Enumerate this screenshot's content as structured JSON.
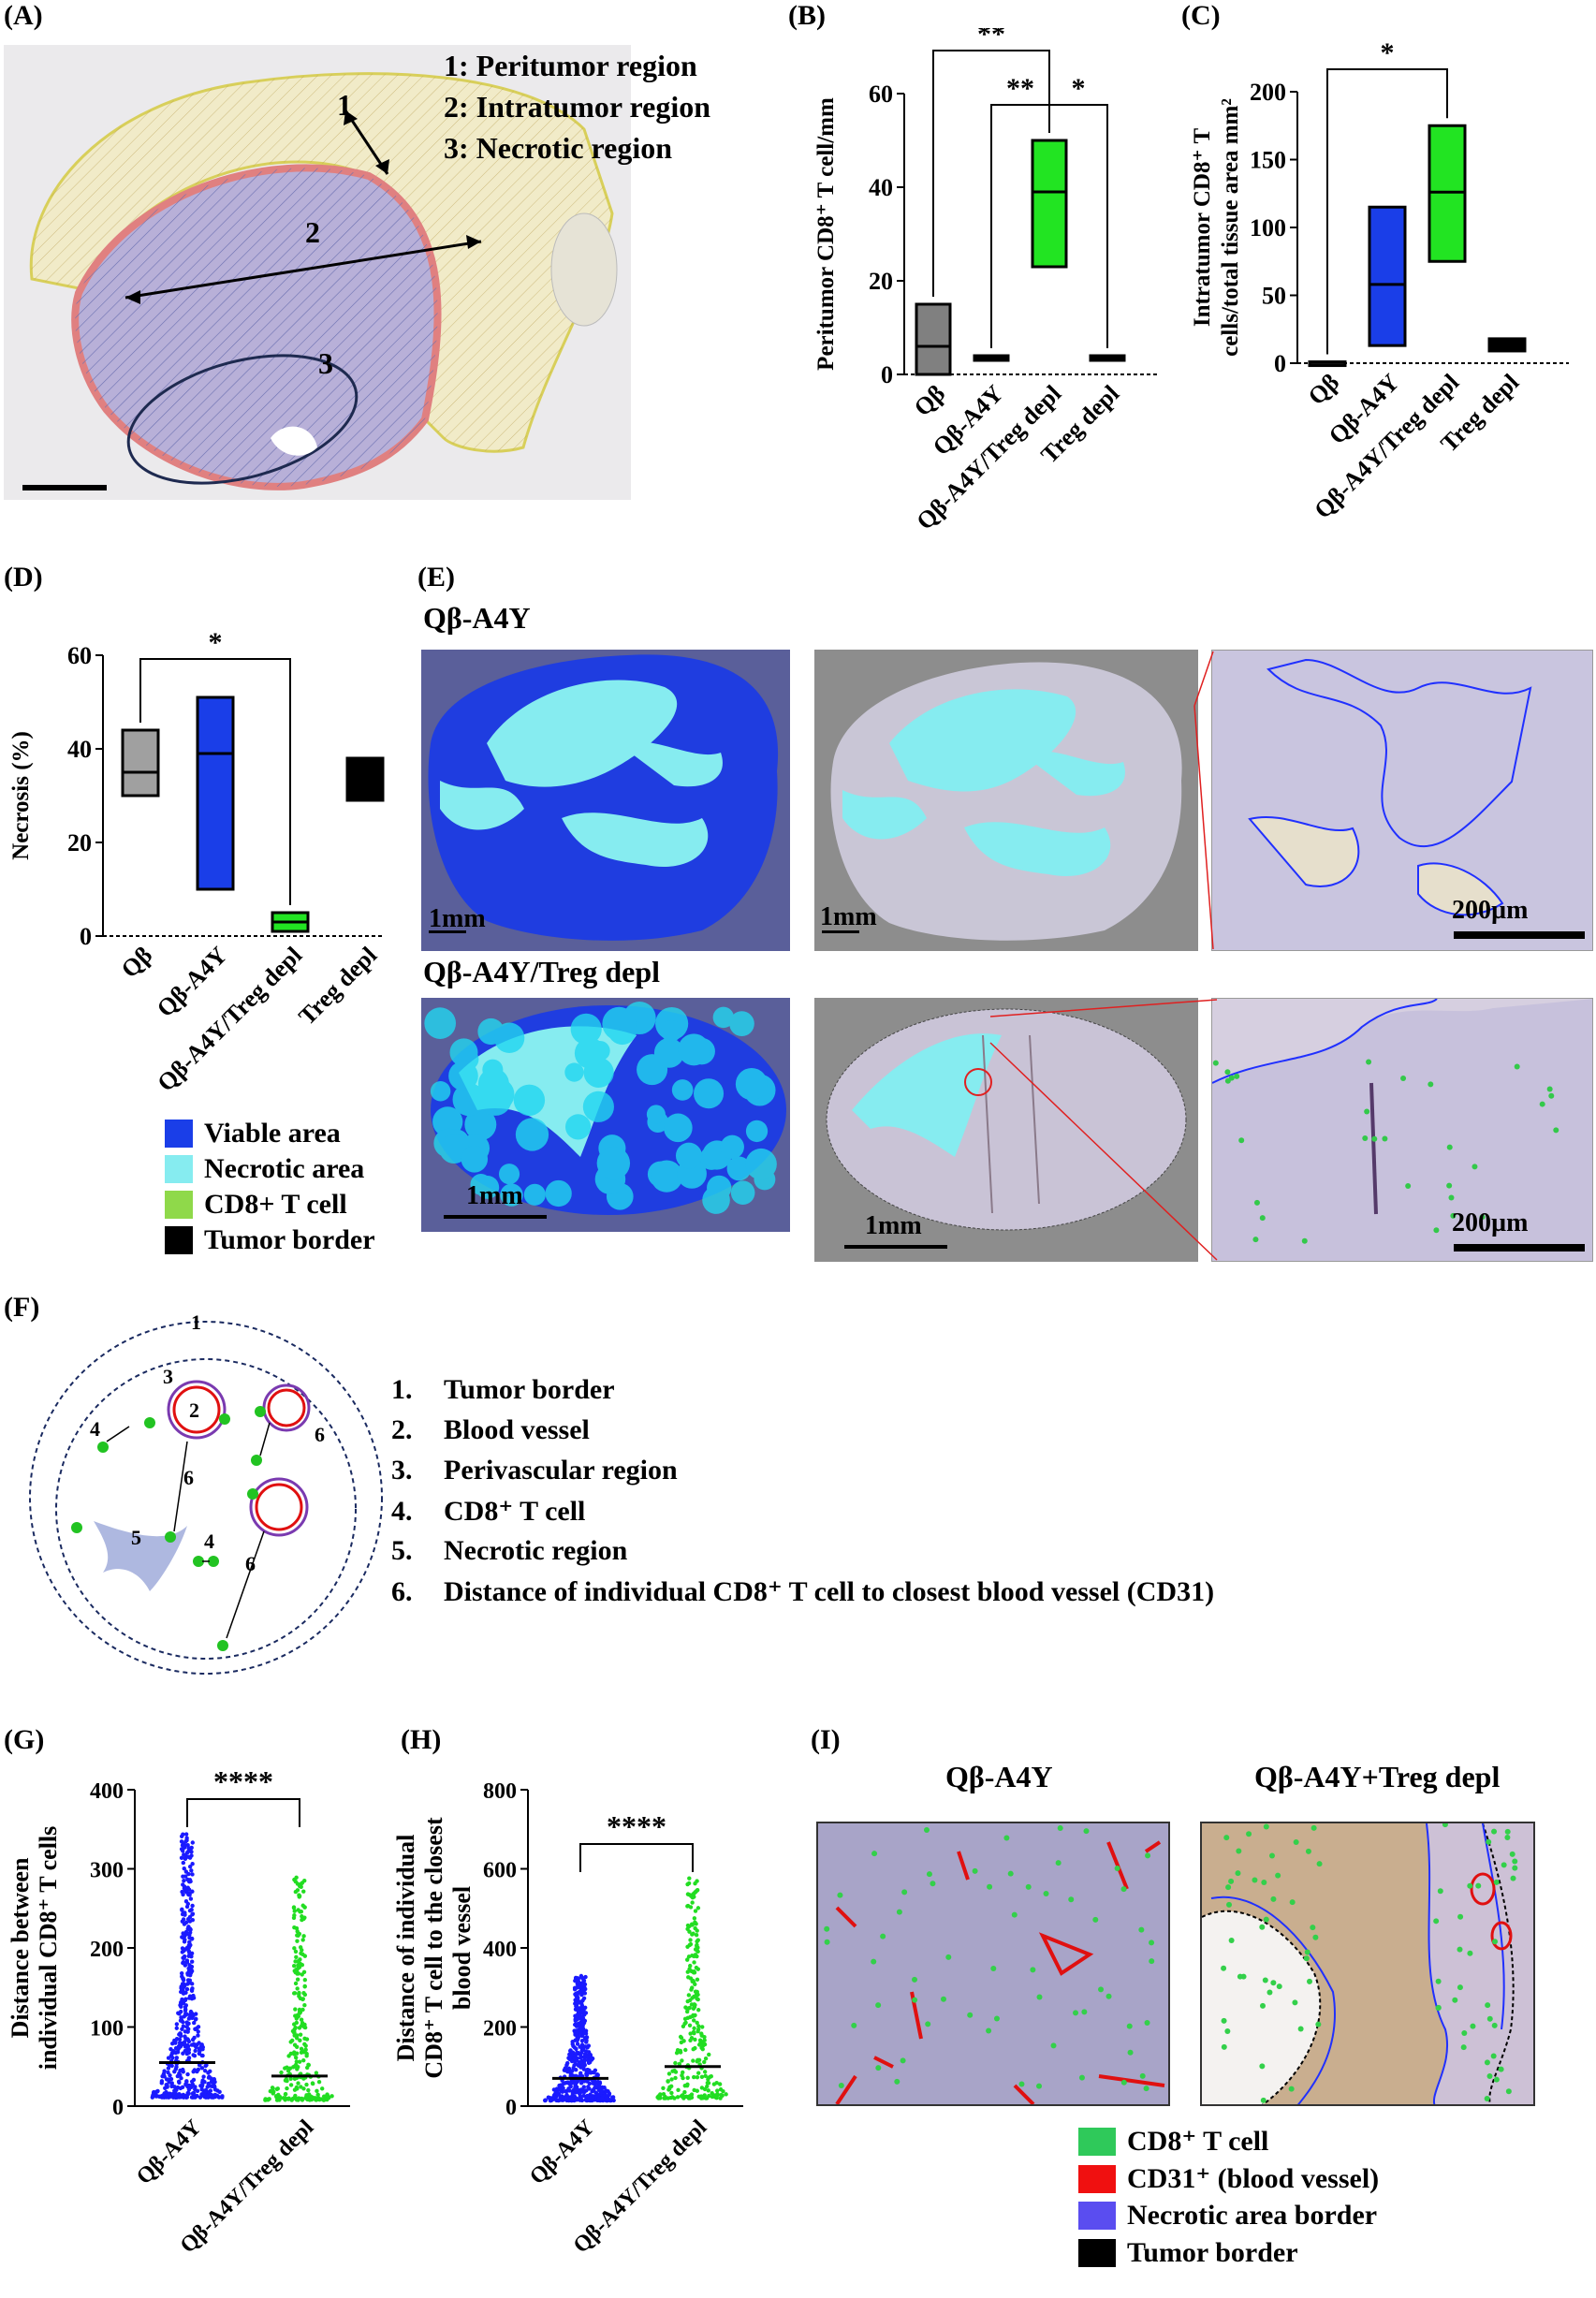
{
  "panel_labels": {
    "A": "(A)",
    "B": "(B)",
    "C": "(C)",
    "D": "(D)",
    "E": "(E)",
    "F": "(F)",
    "G": "(G)",
    "H": "(H)",
    "I": "(I)"
  },
  "panelA": {
    "legend": [
      "1: Peritumor region",
      "2: Intratumor region",
      "3: Necrotic region"
    ],
    "region_numbers": [
      "1",
      "2",
      "3"
    ]
  },
  "panelE": {
    "row1_title": "Qβ-A4Y",
    "row2_title": "Qβ-A4Y/Treg depl",
    "scale_1mm": "1mm",
    "scale_200um": "200µm",
    "legend": [
      {
        "label": "Viable area",
        "color": "#1a3ee8"
      },
      {
        "label": "Necrotic area",
        "color": "#86ecf0"
      },
      {
        "label": "CD8+ T cell",
        "color": "#8fd94a"
      },
      {
        "label": "Tumor border",
        "color": "#000000"
      }
    ]
  },
  "panelF": {
    "list": [
      {
        "num": "1.",
        "text": "Tumor border"
      },
      {
        "num": "2.",
        "text": "Blood vessel"
      },
      {
        "num": "3.",
        "text": "Perivascular region"
      },
      {
        "num": "4.",
        "text": "CD8⁺ T cell"
      },
      {
        "num": "5.",
        "text": "Necrotic region"
      },
      {
        "num": "6.",
        "text": "Distance of individual CD8⁺ T cell to closest blood vessel (CD31)"
      }
    ],
    "diagram_numbers": [
      "1",
      "2",
      "3",
      "4",
      "4",
      "5",
      "6",
      "6",
      "6"
    ]
  },
  "panelI": {
    "title_left": "Qβ-A4Y",
    "title_right": "Qβ-A4Y+Treg depl",
    "legend": [
      {
        "label": "CD8⁺ T cell",
        "color": "#2fc95a"
      },
      {
        "label": "CD31⁺ (blood vessel)",
        "color": "#f01010"
      },
      {
        "label": "Necrotic area border",
        "color": "#5a4df0"
      },
      {
        "label": "Tumor border",
        "color": "#000000"
      }
    ]
  },
  "chart_data": [
    {
      "id": "B",
      "type": "bar",
      "ylabel": "Peritumor CD8⁺ T cell/mm",
      "categories": [
        "Qβ",
        "Qβ-A4Y",
        "Qβ-A4Y/Treg depl",
        "Treg depl"
      ],
      "ylim": [
        0,
        60
      ],
      "yticks": [
        0,
        20,
        40,
        60
      ],
      "boxes": [
        {
          "min": 0,
          "max": 15,
          "mean": 6
        },
        {
          "min": 3,
          "max": 4,
          "mean": 3.5
        },
        {
          "min": 23,
          "max": 50,
          "mean": 39
        },
        {
          "min": 3,
          "max": 4,
          "mean": 3.5
        }
      ],
      "colors": [
        "#808080",
        "#1e1e8c",
        "#22e422",
        "#000000"
      ],
      "significance": [
        {
          "from": 0,
          "to": 2,
          "label": "**"
        },
        {
          "from": 1,
          "to": 2,
          "label": "**"
        },
        {
          "from": 2,
          "to": 3,
          "label": "*"
        }
      ]
    },
    {
      "id": "C",
      "type": "bar",
      "ylabel": "Intratumor CD8⁺ T cells/total tissue area mm²",
      "categories": [
        "Qβ",
        "Qβ-A4Y",
        "Qβ-A4Y/Treg depl",
        "Treg depl"
      ],
      "ylim": [
        0,
        200
      ],
      "yticks": [
        0,
        50,
        100,
        150,
        200
      ],
      "boxes": [
        {
          "min": 0,
          "max": 1,
          "mean": 0.5
        },
        {
          "min": 13,
          "max": 115,
          "mean": 58
        },
        {
          "min": 75,
          "max": 175,
          "mean": 126
        },
        {
          "min": 9,
          "max": 18,
          "mean": 13
        }
      ],
      "colors": [
        "#404040",
        "#1a3ee8",
        "#22e422",
        "#000000"
      ],
      "significance": [
        {
          "from": 0,
          "to": 2,
          "label": "*"
        }
      ]
    },
    {
      "id": "D",
      "type": "bar",
      "ylabel": "Necrosis (%)",
      "categories": [
        "Qβ",
        "Qβ-A4Y",
        "Qβ-A4Y/Treg depl",
        "Treg depl"
      ],
      "ylim": [
        0,
        60
      ],
      "yticks": [
        0,
        20,
        40,
        60
      ],
      "boxes": [
        {
          "min": 30,
          "max": 44,
          "mean": 35
        },
        {
          "min": 10,
          "max": 51,
          "mean": 39
        },
        {
          "min": 1,
          "max": 5,
          "mean": 3
        },
        {
          "min": 29,
          "max": 38,
          "mean": 33
        }
      ],
      "colors": [
        "#a0a0a0",
        "#1a3ee8",
        "#22e422",
        "#000000"
      ],
      "significance": [
        {
          "from": 0,
          "to": 2,
          "label": "*"
        }
      ]
    },
    {
      "id": "G",
      "type": "scatter",
      "ylabel": "Distance between individual CD8⁺ T cells",
      "categories": [
        "Qβ-A4Y",
        "Qβ-A4Y/Treg depl"
      ],
      "ylim": [
        0,
        400
      ],
      "yticks": [
        0,
        100,
        200,
        300,
        400
      ],
      "means": [
        55,
        38
      ],
      "maxima": [
        350,
        290
      ],
      "colors": [
        "#1a1aff",
        "#22dd22"
      ],
      "significance": [
        {
          "from": 0,
          "to": 1,
          "label": "****"
        }
      ]
    },
    {
      "id": "H",
      "type": "scatter",
      "ylabel": "Distance of individual CD8⁺ T cell to the closest blood vessel",
      "categories": [
        "Qβ-A4Y",
        "Qβ-A4Y/Treg depl"
      ],
      "ylim": [
        0,
        800
      ],
      "yticks": [
        0,
        200,
        400,
        600,
        800
      ],
      "means": [
        70,
        100
      ],
      "maxima": [
        330,
        580
      ],
      "colors": [
        "#1a1aff",
        "#22dd22"
      ],
      "significance": [
        {
          "from": 0,
          "to": 1,
          "label": "****"
        }
      ]
    }
  ]
}
